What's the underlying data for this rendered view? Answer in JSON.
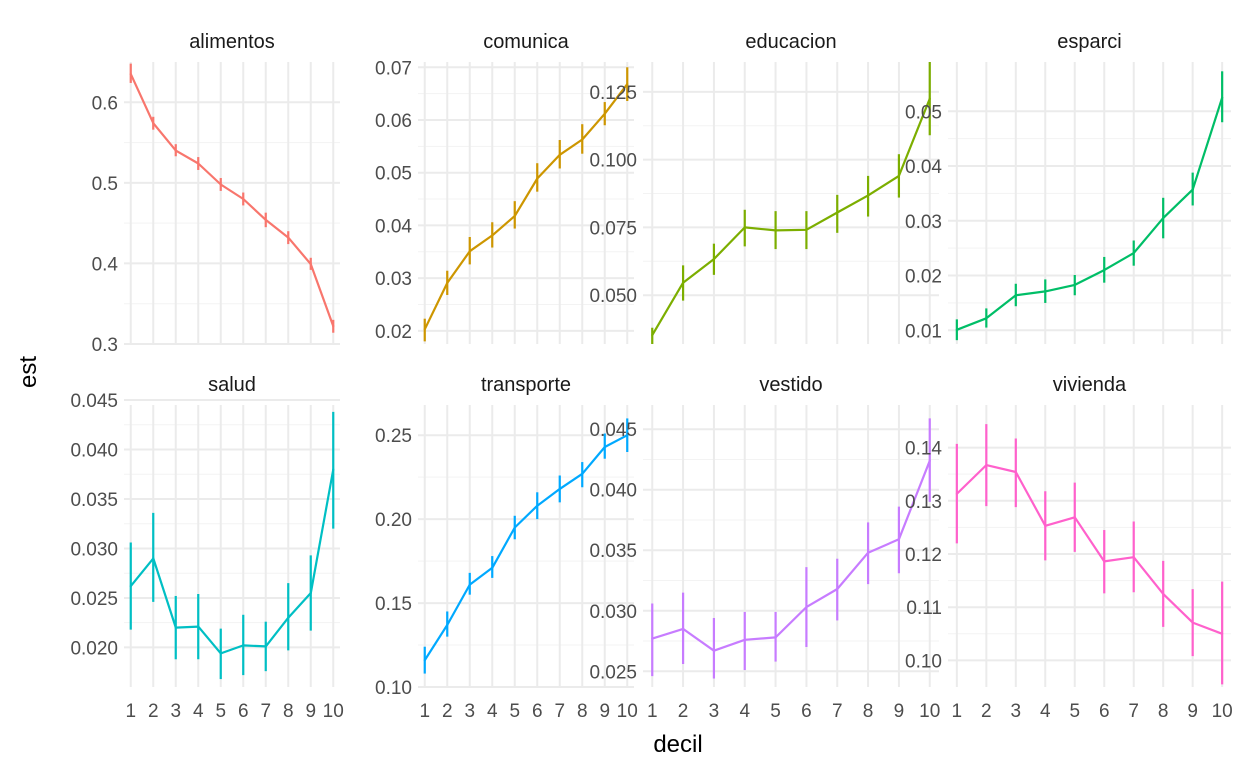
{
  "chart_data": {
    "type": "line",
    "xlabel": "decil",
    "ylabel": "est",
    "x": [
      1,
      2,
      3,
      4,
      5,
      6,
      7,
      8,
      9,
      10
    ],
    "x_tick_labels": [
      "1",
      "2",
      "3",
      "4",
      "5",
      "6",
      "7",
      "8",
      "9",
      "10"
    ],
    "grid": true,
    "legend": "none",
    "error_bars": true,
    "panels": [
      {
        "title": "alimentos",
        "color": "#F8766D",
        "ylim": [
          0.3,
          0.65
        ],
        "yticks": [
          0.3,
          0.4,
          0.5,
          0.6
        ],
        "ytick_labels": [
          "0.3",
          "0.4",
          "0.5",
          "0.6"
        ],
        "values": [
          0.635,
          0.574,
          0.54,
          0.524,
          0.498,
          0.48,
          0.454,
          0.432,
          0.399,
          0.322
        ],
        "lower": [
          0.624,
          0.566,
          0.533,
          0.516,
          0.49,
          0.472,
          0.445,
          0.424,
          0.392,
          0.314
        ],
        "upper": [
          0.648,
          0.582,
          0.548,
          0.532,
          0.506,
          0.488,
          0.463,
          0.44,
          0.407,
          0.33
        ]
      },
      {
        "title": "comunica",
        "color": "#CD9600",
        "ylim": [
          0.0175,
          0.071
        ],
        "yticks": [
          0.02,
          0.03,
          0.04,
          0.05,
          0.06,
          0.07
        ],
        "ytick_labels": [
          "0.02",
          "0.03",
          "0.04",
          "0.05",
          "0.06",
          "0.07"
        ],
        "values": [
          0.0203,
          0.0291,
          0.0351,
          0.0381,
          0.0418,
          0.0489,
          0.0534,
          0.0563,
          0.0612,
          0.0668
        ],
        "lower": [
          0.018,
          0.0268,
          0.0326,
          0.0358,
          0.0394,
          0.0464,
          0.0508,
          0.0536,
          0.059,
          0.0636
        ],
        "upper": [
          0.0223,
          0.0314,
          0.0378,
          0.0406,
          0.0446,
          0.0518,
          0.0562,
          0.0592,
          0.0634,
          0.07
        ]
      },
      {
        "title": "educacion",
        "color": "#7CAE00",
        "ylim": [
          0.032,
          0.136
        ],
        "yticks": [
          0.05,
          0.075,
          0.1,
          0.125
        ],
        "ytick_labels": [
          "0.050",
          "0.075",
          "0.100",
          "0.125"
        ],
        "values": [
          0.0353,
          0.0546,
          0.0633,
          0.075,
          0.0739,
          0.0741,
          0.0805,
          0.0868,
          0.094,
          0.1225
        ],
        "lower": [
          0.032,
          0.048,
          0.0575,
          0.068,
          0.067,
          0.067,
          0.073,
          0.079,
          0.086,
          0.109
        ],
        "upper": [
          0.038,
          0.061,
          0.069,
          0.0815,
          0.081,
          0.081,
          0.087,
          0.094,
          0.102,
          0.136
        ]
      },
      {
        "title": "esparci",
        "color": "#00BE67",
        "ylim": [
          0.0075,
          0.059
        ],
        "yticks": [
          0.01,
          0.02,
          0.03,
          0.04,
          0.05
        ],
        "ytick_labels": [
          "0.01",
          "0.02",
          "0.03",
          "0.04",
          "0.05"
        ],
        "values": [
          0.0101,
          0.0122,
          0.0164,
          0.0171,
          0.0183,
          0.021,
          0.0241,
          0.0305,
          0.0357,
          0.0525
        ],
        "lower": [
          0.0082,
          0.0105,
          0.0144,
          0.015,
          0.0164,
          0.0187,
          0.0218,
          0.0268,
          0.0328,
          0.048
        ],
        "upper": [
          0.012,
          0.014,
          0.0185,
          0.0193,
          0.0201,
          0.0234,
          0.0264,
          0.0342,
          0.0388,
          0.0573
        ]
      },
      {
        "title": "salud",
        "color": "#00BFC4",
        "ylim": [
          0.016,
          0.0445
        ],
        "yticks": [
          0.02,
          0.025,
          0.03,
          0.035,
          0.04,
          0.045
        ],
        "ytick_labels": [
          "0.020",
          "0.025",
          "0.030",
          "0.035",
          "0.040",
          "0.045"
        ],
        "values": [
          0.0262,
          0.029,
          0.022,
          0.0221,
          0.0194,
          0.0202,
          0.0201,
          0.023,
          0.0255,
          0.038
        ],
        "lower": [
          0.0218,
          0.0246,
          0.0188,
          0.0188,
          0.0168,
          0.0172,
          0.0176,
          0.0197,
          0.0217,
          0.032
        ],
        "upper": [
          0.0306,
          0.0336,
          0.0252,
          0.0254,
          0.0219,
          0.0233,
          0.0226,
          0.0265,
          0.0293,
          0.0438
        ]
      },
      {
        "title": "transporte",
        "color": "#00A9FF",
        "ylim": [
          0.1,
          0.268
        ],
        "yticks": [
          0.1,
          0.15,
          0.2,
          0.25
        ],
        "ytick_labels": [
          "0.10",
          "0.15",
          "0.20",
          "0.25"
        ],
        "values": [
          0.116,
          0.137,
          0.161,
          0.171,
          0.195,
          0.208,
          0.218,
          0.227,
          0.243,
          0.25
        ],
        "lower": [
          0.108,
          0.13,
          0.155,
          0.165,
          0.188,
          0.2,
          0.21,
          0.219,
          0.236,
          0.24
        ],
        "upper": [
          0.124,
          0.145,
          0.168,
          0.178,
          0.202,
          0.216,
          0.226,
          0.234,
          0.251,
          0.26
        ]
      },
      {
        "title": "vestido",
        "color": "#C77CFF",
        "ylim": [
          0.0237,
          0.047
        ],
        "yticks": [
          0.025,
          0.03,
          0.035,
          0.04,
          0.045
        ],
        "ytick_labels": [
          "0.025",
          "0.030",
          "0.035",
          "0.040",
          "0.045"
        ],
        "values": [
          0.0277,
          0.0285,
          0.0267,
          0.0276,
          0.0278,
          0.0303,
          0.0318,
          0.0348,
          0.0359,
          0.0424
        ],
        "lower": [
          0.0246,
          0.0256,
          0.0244,
          0.0251,
          0.0258,
          0.027,
          0.0292,
          0.0322,
          0.0331,
          0.039
        ],
        "upper": [
          0.0306,
          0.0315,
          0.0294,
          0.0299,
          0.0299,
          0.0336,
          0.0343,
          0.0373,
          0.0386,
          0.0459
        ]
      },
      {
        "title": "vivienda",
        "color": "#FF61CC",
        "ylim": [
          0.095,
          0.148
        ],
        "yticks": [
          0.1,
          0.11,
          0.12,
          0.13,
          0.14
        ],
        "ytick_labels": [
          "0.10",
          "0.11",
          "0.12",
          "0.13",
          "0.14"
        ],
        "values": [
          0.1313,
          0.1367,
          0.1354,
          0.1253,
          0.1269,
          0.1186,
          0.1194,
          0.1125,
          0.1071,
          0.105
        ],
        "lower": [
          0.122,
          0.129,
          0.1288,
          0.1188,
          0.1204,
          0.1126,
          0.1128,
          0.1063,
          0.1008,
          0.0955
        ],
        "upper": [
          0.1407,
          0.1444,
          0.1417,
          0.1318,
          0.1334,
          0.1245,
          0.1261,
          0.1187,
          0.1134,
          0.1148
        ]
      }
    ]
  }
}
